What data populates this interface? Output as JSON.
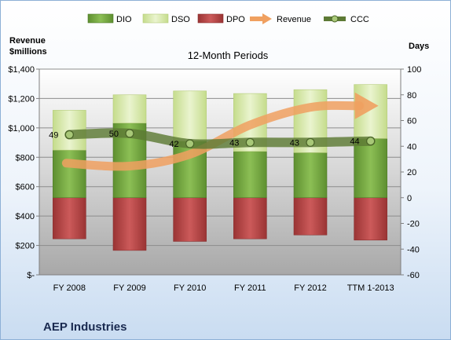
{
  "chart_data": {
    "type": "bar",
    "subtitle": "12-Month Periods",
    "company": "AEP Industries",
    "left_axis_title": [
      "Revenue",
      "$millions"
    ],
    "right_axis_title": "Days",
    "left_axis": {
      "min": 0,
      "max": 1400,
      "ticks": [
        "$-",
        "$200",
        "$400",
        "$600",
        "$800",
        "$1,000",
        "$1,200",
        "$1,400"
      ]
    },
    "right_axis": {
      "min": -60,
      "max": 100,
      "ticks": [
        "-60",
        "-40",
        "-20",
        "0",
        "20",
        "40",
        "60",
        "80",
        "100"
      ]
    },
    "categories": [
      "FY 2008",
      "FY 2009",
      "FY 2010",
      "FY 2011",
      "FY 2012",
      "TTM 1-2013"
    ],
    "series": [
      {
        "name": "DIO",
        "axis": "right",
        "kind": "stacked-positive",
        "color": "#77a845",
        "values": [
          37,
          58,
          44,
          36,
          35,
          46
        ]
      },
      {
        "name": "DSO",
        "axis": "right",
        "kind": "stacked-positive",
        "color": "#d7e7b2",
        "values": [
          31,
          22,
          39,
          45,
          49,
          42
        ]
      },
      {
        "name": "DPO",
        "axis": "right",
        "kind": "negative",
        "color": "#b84a4a",
        "values": [
          32,
          41,
          34,
          32,
          29,
          33
        ]
      },
      {
        "name": "Revenue",
        "axis": "left",
        "kind": "arrow-line",
        "color": "#f0a060",
        "values": [
          760,
          740,
          820,
          1020,
          1140,
          1150
        ]
      },
      {
        "name": "CCC",
        "axis": "right",
        "kind": "line-markers",
        "color": "#5d7a35",
        "values": [
          49,
          50,
          42,
          43,
          43,
          44
        ]
      }
    ],
    "ccc_labels": [
      "49",
      "50",
      "42",
      "43",
      "43",
      "44"
    ],
    "legend_position": "top"
  }
}
